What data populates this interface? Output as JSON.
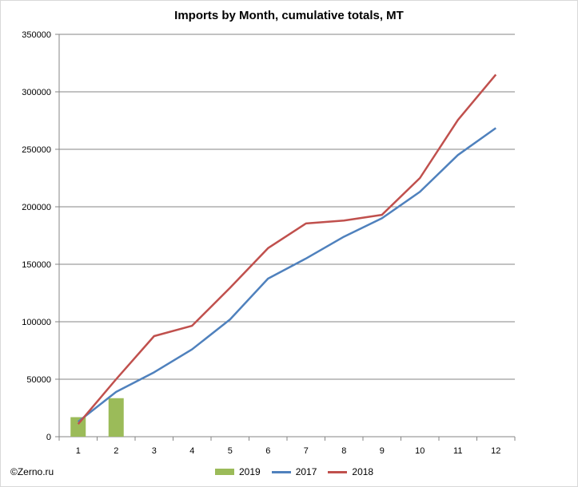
{
  "chart_data": {
    "type": "line",
    "title": "Imports by Month, cumulative totals, MT",
    "categories": [
      "1",
      "2",
      "3",
      "4",
      "5",
      "6",
      "7",
      "8",
      "9",
      "10",
      "11",
      "12"
    ],
    "ylim": [
      0,
      350000
    ],
    "yticks": [
      "0",
      "50000",
      "100000",
      "150000",
      "200000",
      "250000",
      "300000",
      "350000"
    ],
    "grid": true,
    "legend_position": "bottom",
    "series": [
      {
        "name": "2019",
        "type": "bar",
        "color": "#9bbb59",
        "values": [
          17000,
          33500,
          null,
          null,
          null,
          null,
          null,
          null,
          null,
          null,
          null,
          null
        ]
      },
      {
        "name": "2017",
        "type": "line",
        "color": "#4f81bd",
        "values": [
          13000,
          39000,
          56000,
          76000,
          102000,
          137500,
          155000,
          174000,
          190000,
          213000,
          245000,
          268500
        ]
      },
      {
        "name": "2018",
        "type": "line",
        "color": "#c0504d",
        "values": [
          11000,
          50000,
          87500,
          96500,
          129500,
          164000,
          185500,
          188000,
          193000,
          225000,
          275500,
          315000
        ]
      }
    ]
  },
  "copyright": "©Zerno.ru"
}
